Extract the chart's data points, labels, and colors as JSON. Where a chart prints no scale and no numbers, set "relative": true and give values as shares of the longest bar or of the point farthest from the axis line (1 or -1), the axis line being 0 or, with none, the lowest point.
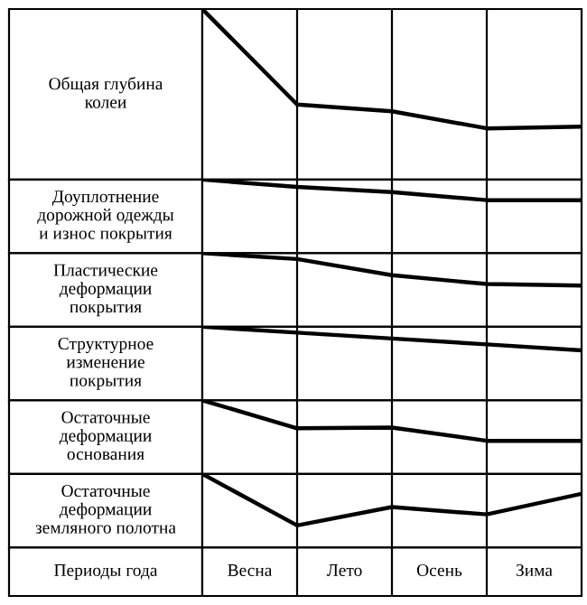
{
  "chart_data": [
    {
      "type": "line",
      "ylabel": "Общая глубина\nколеи",
      "relative": true,
      "categories": [
        null,
        null,
        null,
        null,
        null
      ],
      "tick_labels": false,
      "grid": "x",
      "series": [
        {
          "color": "#000000",
          "values": [
            1,
            0.44,
            0.4,
            0.3,
            0.31
          ]
        }
      ]
    },
    {
      "type": "line",
      "ylabel": "Доуплотнение\nдорожной одежды\nи износ покрытия",
      "relative": true,
      "categories": [
        null,
        null,
        null,
        null,
        null
      ],
      "tick_labels": false,
      "grid": "x",
      "series": [
        {
          "color": "#000000",
          "values": [
            1,
            0.9,
            0.83,
            0.72,
            0.72
          ]
        }
      ]
    },
    {
      "type": "line",
      "ylabel": "Пластические\nдеформации\nпокрытия",
      "relative": true,
      "categories": [
        null,
        null,
        null,
        null,
        null
      ],
      "tick_labels": false,
      "grid": "x",
      "series": [
        {
          "color": "#000000",
          "values": [
            1,
            0.92,
            0.7,
            0.58,
            0.56
          ]
        }
      ]
    },
    {
      "type": "line",
      "ylabel": "Структурное\nизменение\nпокрытия",
      "relative": true,
      "categories": [
        null,
        null,
        null,
        null,
        null
      ],
      "tick_labels": false,
      "grid": "x",
      "series": [
        {
          "color": "#000000",
          "values": [
            1,
            0.92,
            0.84,
            0.76,
            0.68
          ]
        }
      ]
    },
    {
      "type": "line",
      "ylabel": "Остаточные\nдеформации\nоснования",
      "relative": true,
      "categories": [
        null,
        null,
        null,
        null,
        null
      ],
      "tick_labels": false,
      "grid": "x",
      "series": [
        {
          "color": "#000000",
          "values": [
            1,
            0.62,
            0.63,
            0.45,
            0.45
          ]
        }
      ]
    },
    {
      "type": "line",
      "ylabel": "Остаточные\nдеформации\nземляного полотна",
      "relative": true,
      "categories": [
        null,
        null,
        null,
        null,
        null
      ],
      "tick_labels": false,
      "grid": "x",
      "series": [
        {
          "color": "#000000",
          "values": [
            1,
            0.3,
            0.55,
            0.45,
            0.73
          ]
        }
      ]
    },
    {
      "type": "other",
      "ylabel": "Периоды года",
      "categories": [
        "Весна",
        "Лето",
        "Осень",
        "Зима"
      ]
    }
  ]
}
